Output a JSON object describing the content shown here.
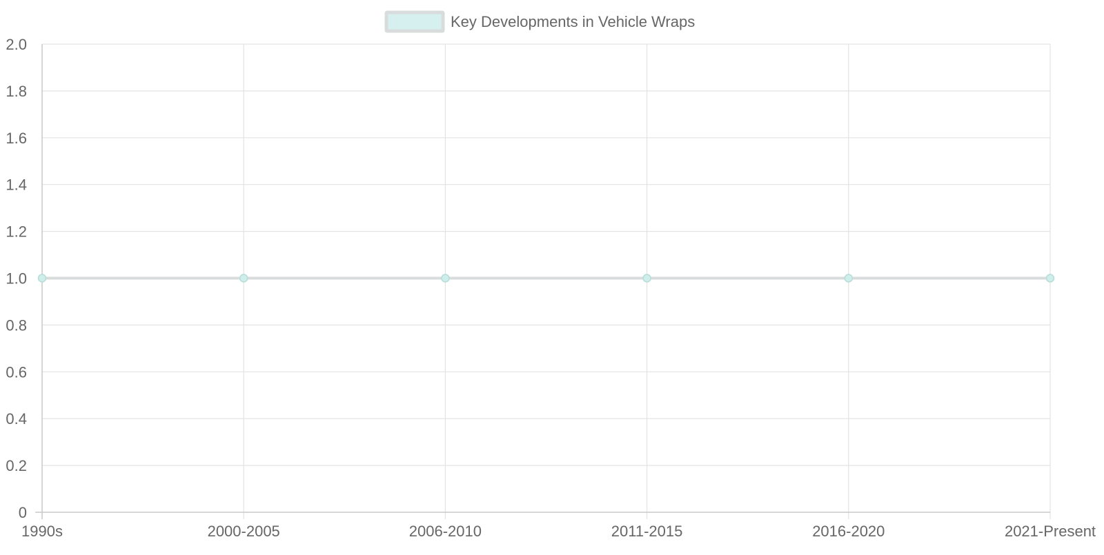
{
  "chart_data": {
    "type": "line",
    "categories": [
      "1990s",
      "2000-2005",
      "2006-2010",
      "2011-2015",
      "2016-2020",
      "2021-Present"
    ],
    "series": [
      {
        "name": "Key Developments in Vehicle Wraps",
        "values": [
          1,
          1,
          1,
          1,
          1,
          1
        ],
        "line_color": "#d9dcdc",
        "fill_color": "#d6f0ef",
        "point_color": "#cdeeea",
        "point_border_color": "#b7dcd8"
      }
    ],
    "y_ticks": [
      0,
      0.2,
      0.4,
      0.6,
      0.8,
      1.0,
      1.2,
      1.4,
      1.6,
      1.8,
      2.0
    ],
    "y_tick_labels": [
      "0",
      "0.2",
      "0.4",
      "0.6",
      "0.8",
      "1.0",
      "1.2",
      "1.4",
      "1.6",
      "1.8",
      "2.0"
    ],
    "ylim": [
      0,
      2
    ],
    "grid": true,
    "legend_position": "top-center",
    "grid_color": "#e3e3e3",
    "axis_color": "#c9c9c9",
    "text_color": "#666666"
  }
}
